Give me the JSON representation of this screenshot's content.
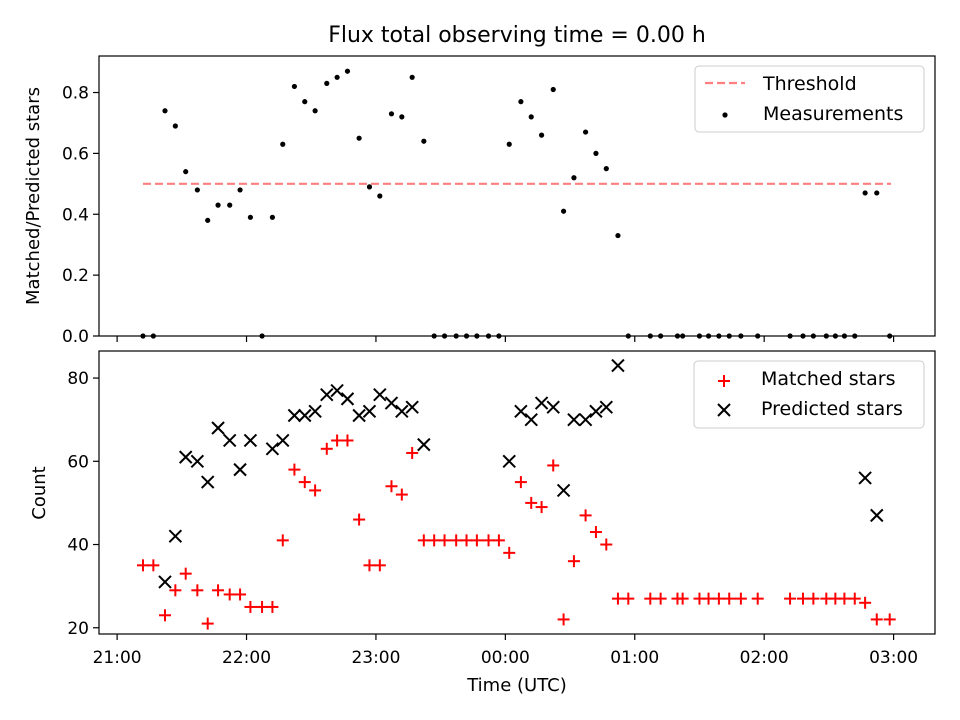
{
  "title": "Flux total observing time = 0.00 h",
  "colors": {
    "threshold": "#ff7f7f",
    "measurement": "#000000",
    "matched": "#ff0000",
    "predicted": "#000000"
  },
  "xaxis": {
    "label": "Time (UTC)",
    "unit": "hours since 21:00 UTC",
    "lim": [
      -0.14,
      6.32
    ],
    "ticks": [
      {
        "v": 0,
        "label": "21:00"
      },
      {
        "v": 1,
        "label": "22:00"
      },
      {
        "v": 2,
        "label": "23:00"
      },
      {
        "v": 3,
        "label": "00:00"
      },
      {
        "v": 4,
        "label": "01:00"
      },
      {
        "v": 5,
        "label": "02:00"
      },
      {
        "v": 6,
        "label": "03:00"
      }
    ]
  },
  "chart_data": [
    {
      "type": "scatter",
      "ylabel": "Matched/Predicted stars",
      "ylim": [
        0,
        0.92
      ],
      "yticks": [
        {
          "v": 0,
          "label": "0.0"
        },
        {
          "v": 0.2,
          "label": "0.2"
        },
        {
          "v": 0.4,
          "label": "0.4"
        },
        {
          "v": 0.6,
          "label": "0.6"
        },
        {
          "v": 0.8,
          "label": "0.8"
        }
      ],
      "legend_position": "top-right",
      "threshold": {
        "name": "Threshold",
        "value": 0.5,
        "x": [
          0.2,
          5.98
        ]
      },
      "series": [
        {
          "name": "Measurements",
          "points": [
            [
              0.2,
              0
            ],
            [
              0.28,
              0
            ],
            [
              0.37,
              0.74
            ],
            [
              0.45,
              0.69
            ],
            [
              0.53,
              0.54
            ],
            [
              0.62,
              0.48
            ],
            [
              0.7,
              0.38
            ],
            [
              0.78,
              0.43
            ],
            [
              0.87,
              0.43
            ],
            [
              0.95,
              0.48
            ],
            [
              1.03,
              0.39
            ],
            [
              1.12,
              0
            ],
            [
              1.2,
              0.39
            ],
            [
              1.28,
              0.63
            ],
            [
              1.37,
              0.82
            ],
            [
              1.45,
              0.77
            ],
            [
              1.53,
              0.74
            ],
            [
              1.62,
              0.83
            ],
            [
              1.7,
              0.85
            ],
            [
              1.78,
              0.87
            ],
            [
              1.87,
              0.65
            ],
            [
              1.95,
              0.49
            ],
            [
              2.03,
              0.46
            ],
            [
              2.12,
              0.73
            ],
            [
              2.2,
              0.72
            ],
            [
              2.28,
              0.85
            ],
            [
              2.37,
              0.64
            ],
            [
              2.45,
              0
            ],
            [
              2.53,
              0
            ],
            [
              2.62,
              0
            ],
            [
              2.7,
              0
            ],
            [
              2.78,
              0
            ],
            [
              2.87,
              0
            ],
            [
              2.95,
              0
            ],
            [
              3.03,
              0.63
            ],
            [
              3.12,
              0.77
            ],
            [
              3.2,
              0.72
            ],
            [
              3.28,
              0.66
            ],
            [
              3.37,
              0.81
            ],
            [
              3.45,
              0.41
            ],
            [
              3.53,
              0.52
            ],
            [
              3.62,
              0.67
            ],
            [
              3.7,
              0.6
            ],
            [
              3.78,
              0.55
            ],
            [
              3.87,
              0.33
            ],
            [
              3.95,
              0
            ],
            [
              4.12,
              0
            ],
            [
              4.2,
              0
            ],
            [
              4.33,
              0
            ],
            [
              4.37,
              0
            ],
            [
              4.5,
              0
            ],
            [
              4.57,
              0
            ],
            [
              4.65,
              0
            ],
            [
              4.73,
              0
            ],
            [
              4.82,
              0
            ],
            [
              4.95,
              0
            ],
            [
              5.2,
              0
            ],
            [
              5.3,
              0
            ],
            [
              5.38,
              0
            ],
            [
              5.48,
              0
            ],
            [
              5.55,
              0
            ],
            [
              5.62,
              0
            ],
            [
              5.7,
              0
            ],
            [
              5.78,
              0.47
            ],
            [
              5.87,
              0.47
            ],
            [
              5.97,
              0
            ]
          ]
        }
      ]
    },
    {
      "type": "scatter",
      "ylabel": "Count",
      "ylim": [
        18.5,
        86.5
      ],
      "yticks": [
        {
          "v": 20,
          "label": "20"
        },
        {
          "v": 40,
          "label": "40"
        },
        {
          "v": 60,
          "label": "60"
        },
        {
          "v": 80,
          "label": "80"
        }
      ],
      "legend_position": "top-right",
      "series": [
        {
          "name": "Matched stars",
          "marker": "plus",
          "points": [
            [
              0.2,
              35
            ],
            [
              0.28,
              35
            ],
            [
              0.37,
              23
            ],
            [
              0.45,
              29
            ],
            [
              0.53,
              33
            ],
            [
              0.62,
              29
            ],
            [
              0.7,
              21
            ],
            [
              0.78,
              29
            ],
            [
              0.87,
              28
            ],
            [
              0.95,
              28
            ],
            [
              1.03,
              25
            ],
            [
              1.12,
              25
            ],
            [
              1.2,
              25
            ],
            [
              1.28,
              41
            ],
            [
              1.37,
              58
            ],
            [
              1.45,
              55
            ],
            [
              1.53,
              53
            ],
            [
              1.62,
              63
            ],
            [
              1.7,
              65
            ],
            [
              1.78,
              65
            ],
            [
              1.87,
              46
            ],
            [
              1.95,
              35
            ],
            [
              2.03,
              35
            ],
            [
              2.12,
              54
            ],
            [
              2.2,
              52
            ],
            [
              2.28,
              62
            ],
            [
              2.37,
              41
            ],
            [
              2.45,
              41
            ],
            [
              2.53,
              41
            ],
            [
              2.62,
              41
            ],
            [
              2.7,
              41
            ],
            [
              2.78,
              41
            ],
            [
              2.87,
              41
            ],
            [
              2.95,
              41
            ],
            [
              3.03,
              38
            ],
            [
              3.12,
              55
            ],
            [
              3.2,
              50
            ],
            [
              3.28,
              49
            ],
            [
              3.37,
              59
            ],
            [
              3.45,
              22
            ],
            [
              3.53,
              36
            ],
            [
              3.62,
              47
            ],
            [
              3.7,
              43
            ],
            [
              3.78,
              40
            ],
            [
              3.87,
              27
            ],
            [
              3.95,
              27
            ],
            [
              4.12,
              27
            ],
            [
              4.2,
              27
            ],
            [
              4.33,
              27
            ],
            [
              4.37,
              27
            ],
            [
              4.5,
              27
            ],
            [
              4.57,
              27
            ],
            [
              4.65,
              27
            ],
            [
              4.73,
              27
            ],
            [
              4.82,
              27
            ],
            [
              4.95,
              27
            ],
            [
              5.2,
              27
            ],
            [
              5.3,
              27
            ],
            [
              5.38,
              27
            ],
            [
              5.48,
              27
            ],
            [
              5.55,
              27
            ],
            [
              5.62,
              27
            ],
            [
              5.7,
              27
            ],
            [
              5.78,
              26
            ],
            [
              5.87,
              22
            ],
            [
              5.97,
              22
            ]
          ]
        },
        {
          "name": "Predicted stars",
          "marker": "x",
          "points": [
            [
              0.37,
              31
            ],
            [
              0.45,
              42
            ],
            [
              0.53,
              61
            ],
            [
              0.62,
              60
            ],
            [
              0.7,
              55
            ],
            [
              0.78,
              68
            ],
            [
              0.87,
              65
            ],
            [
              0.95,
              58
            ],
            [
              1.03,
              65
            ],
            [
              1.2,
              63
            ],
            [
              1.28,
              65
            ],
            [
              1.37,
              71
            ],
            [
              1.45,
              71
            ],
            [
              1.53,
              72
            ],
            [
              1.62,
              76
            ],
            [
              1.7,
              77
            ],
            [
              1.78,
              75
            ],
            [
              1.87,
              71
            ],
            [
              1.95,
              72
            ],
            [
              2.03,
              76
            ],
            [
              2.12,
              74
            ],
            [
              2.2,
              72
            ],
            [
              2.28,
              73
            ],
            [
              2.37,
              64
            ],
            [
              3.03,
              60
            ],
            [
              3.12,
              72
            ],
            [
              3.2,
              70
            ],
            [
              3.28,
              74
            ],
            [
              3.37,
              73
            ],
            [
              3.45,
              53
            ],
            [
              3.53,
              70
            ],
            [
              3.62,
              70
            ],
            [
              3.7,
              72
            ],
            [
              3.78,
              73
            ],
            [
              3.87,
              83
            ],
            [
              5.78,
              56
            ],
            [
              5.87,
              47
            ]
          ]
        }
      ]
    }
  ]
}
